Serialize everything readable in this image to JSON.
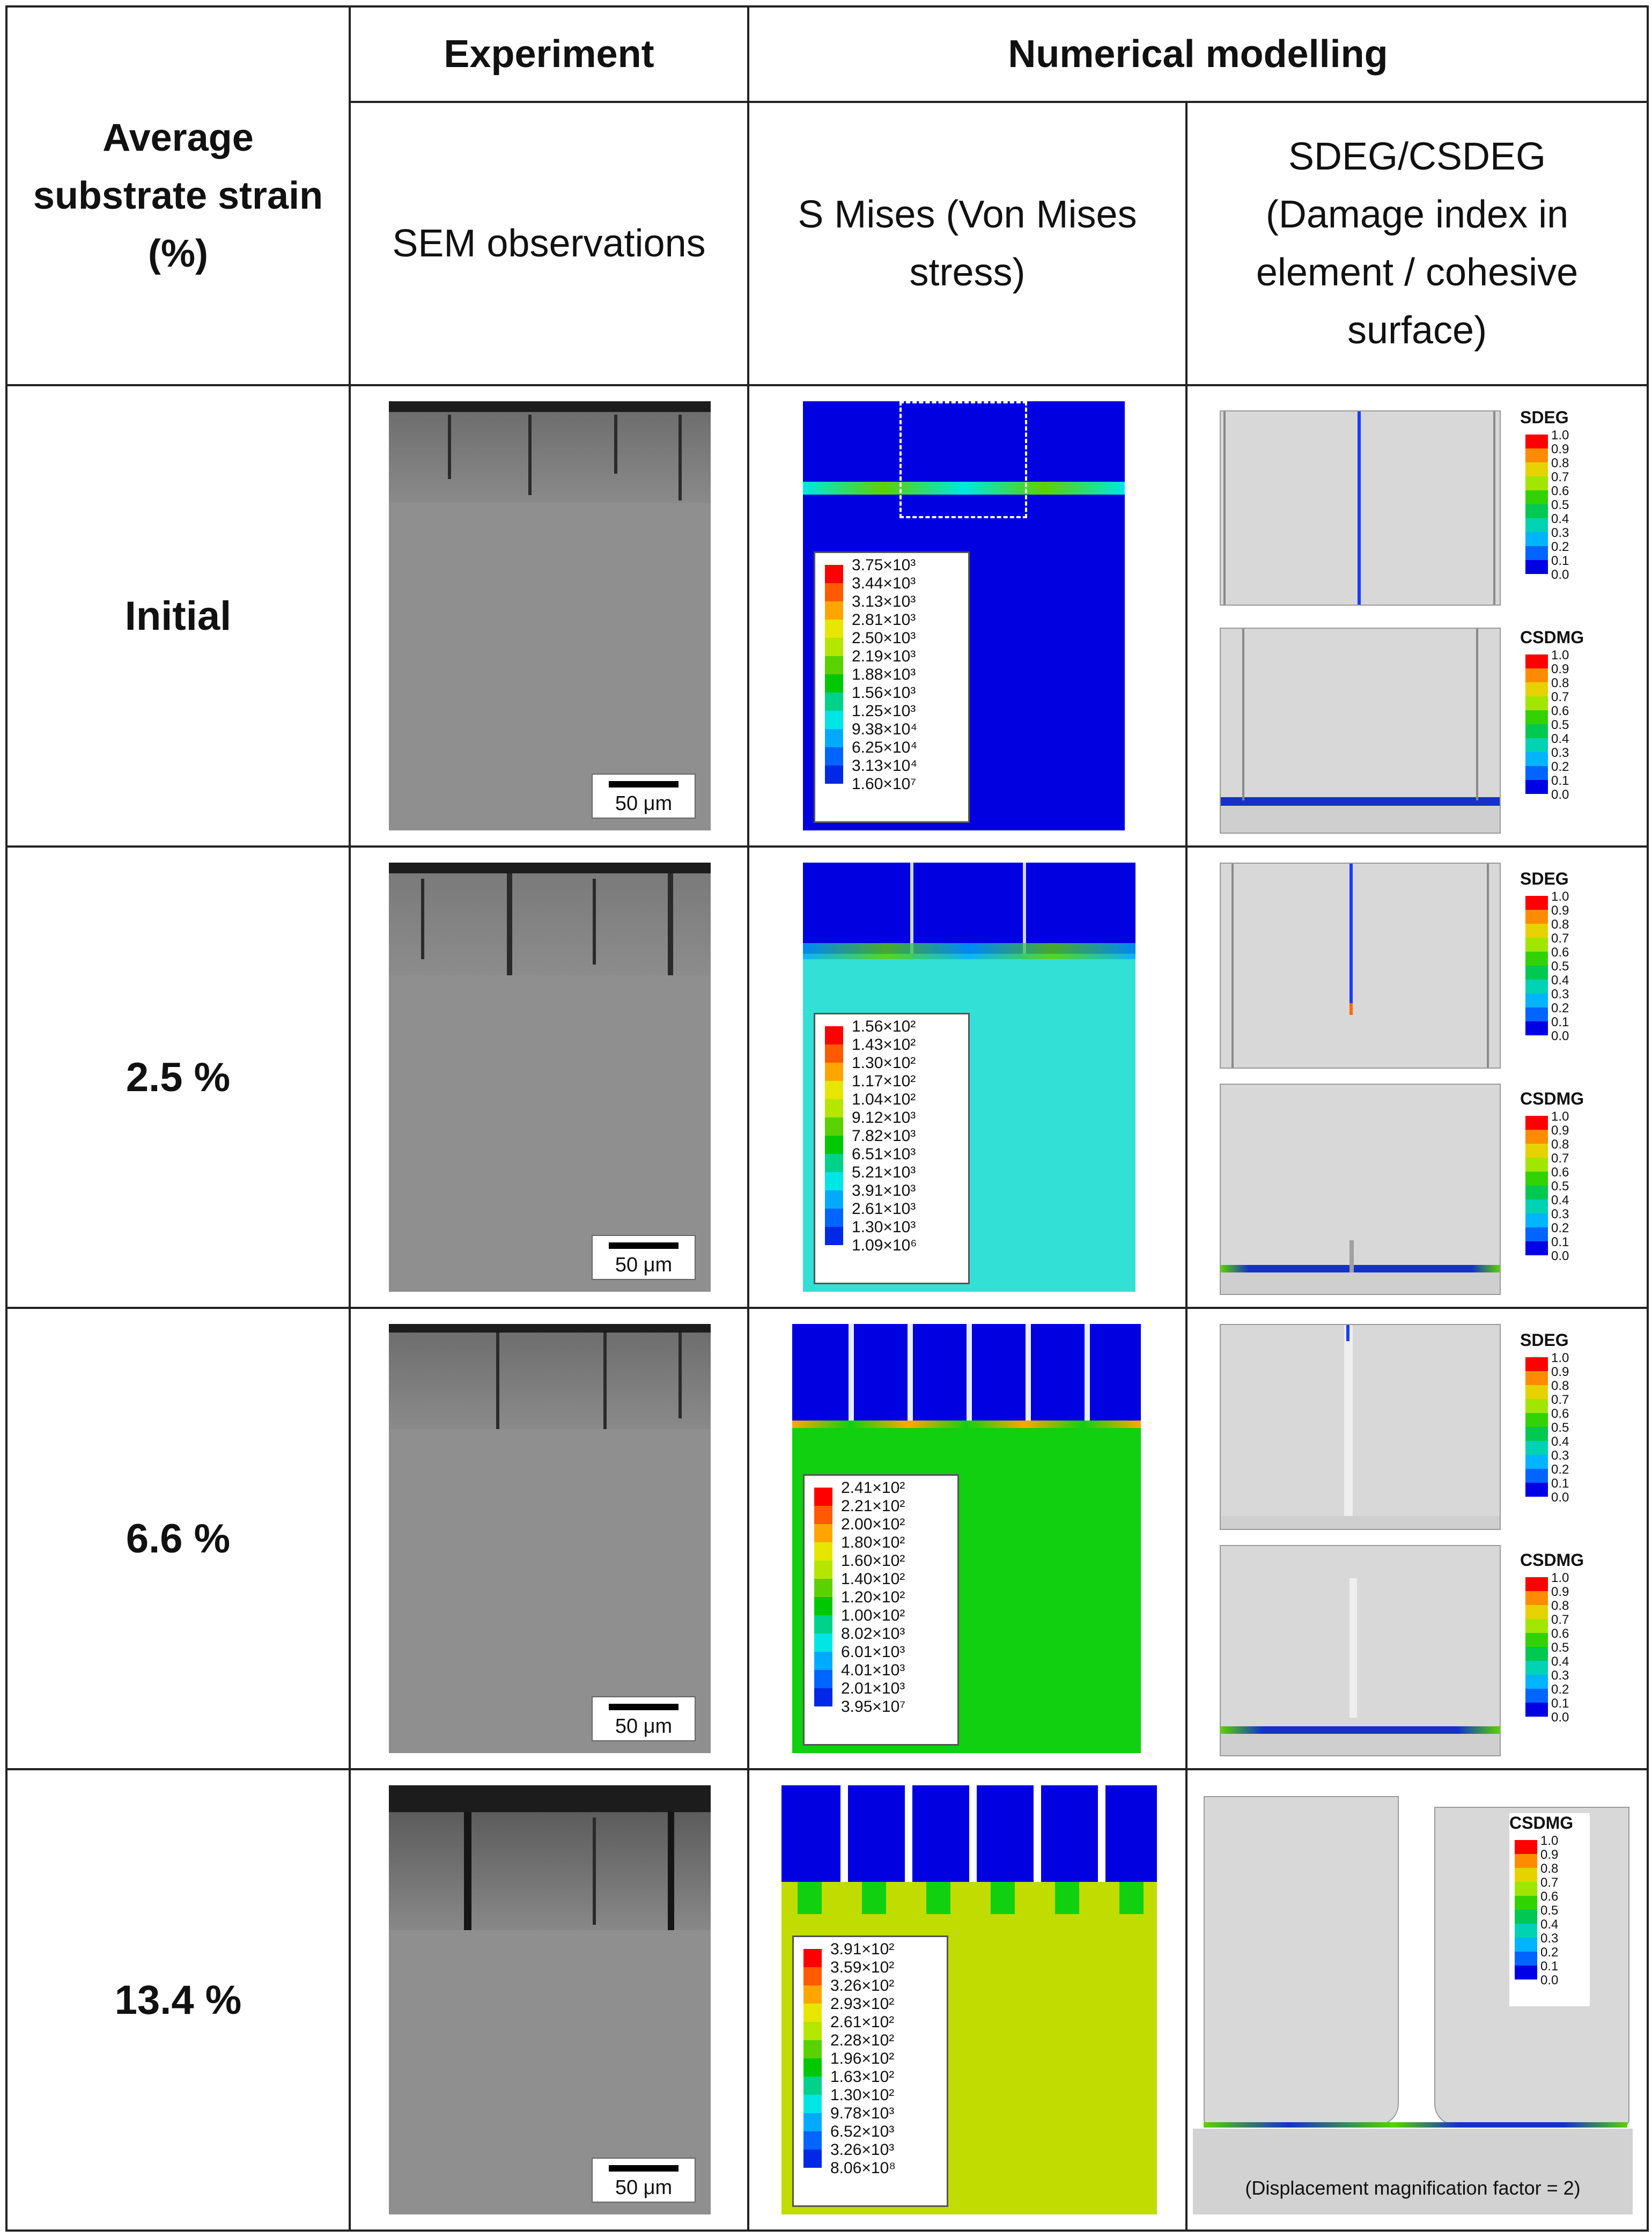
{
  "headers": {
    "strain": "Average substrate strain (%)",
    "experiment": "Experiment",
    "numerical": "Numerical modelling",
    "sem": "SEM observations",
    "mises": "S Mises (Von Mises stress)",
    "sdeg": "SDEG/CSDEG (Damage index in element / cohesive surface)"
  },
  "scale_label": "50 μm",
  "damage_ticks": [
    "1.0",
    "0.9",
    "0.8",
    "0.7",
    "0.6",
    "0.5",
    "0.4",
    "0.3",
    "0.2",
    "0.1",
    "0.0"
  ],
  "contour_colors": [
    "#ff0000",
    "#ff5a00",
    "#ffa500",
    "#e6e600",
    "#b4e600",
    "#5ad200",
    "#00c800",
    "#00d28c",
    "#00e6e6",
    "#00aaff",
    "#0064ff",
    "#0028e6",
    "#0000c8"
  ],
  "rows": [
    {
      "label": "Initial",
      "mises_values": [
        "3.75×10³",
        "3.44×10³",
        "3.13×10³",
        "2.81×10³",
        "2.50×10³",
        "2.19×10³",
        "1.88×10³",
        "1.56×10³",
        "1.25×10³",
        "9.38×10⁴",
        "6.25×10⁴",
        "3.13×10⁴",
        "1.60×10⁷"
      ],
      "substrate_color": "#0000e0",
      "damage_top_title": "SDEG",
      "damage_bottom_title": "CSDMG"
    },
    {
      "label": "2.5 %",
      "mises_values": [
        "1.56×10²",
        "1.43×10²",
        "1.30×10²",
        "1.17×10²",
        "1.04×10²",
        "9.12×10³",
        "7.82×10³",
        "6.51×10³",
        "5.21×10³",
        "3.91×10³",
        "2.61×10³",
        "1.30×10³",
        "1.09×10⁶"
      ],
      "substrate_color": "#33e0d6",
      "damage_top_title": "SDEG",
      "damage_bottom_title": "CSDMG"
    },
    {
      "label": "6.6 %",
      "mises_values": [
        "2.41×10²",
        "2.21×10²",
        "2.00×10²",
        "1.80×10²",
        "1.60×10²",
        "1.40×10²",
        "1.20×10²",
        "1.00×10²",
        "8.02×10³",
        "6.01×10³",
        "4.01×10³",
        "2.01×10³",
        "3.95×10⁷"
      ],
      "substrate_color": "#10d010",
      "damage_top_title": "SDEG",
      "damage_bottom_title": "CSDMG"
    },
    {
      "label": "13.4 %",
      "mises_values": [
        "3.91×10²",
        "3.59×10²",
        "3.26×10²",
        "2.93×10²",
        "2.61×10²",
        "2.28×10²",
        "1.96×10²",
        "1.63×10²",
        "1.30×10²",
        "9.78×10³",
        "6.52×10³",
        "3.26×10³",
        "8.06×10⁸"
      ],
      "substrate_color": "#c0dc00",
      "damage_top_title": "CSDMG",
      "damage_caption": "(Displacement magnification factor = 2)"
    }
  ]
}
